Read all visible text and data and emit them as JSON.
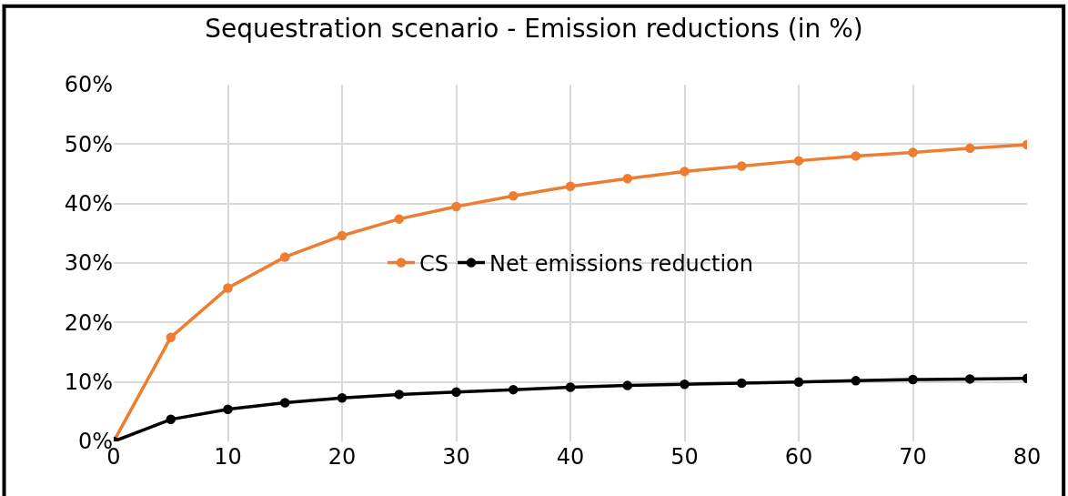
{
  "chart_data": {
    "type": "line",
    "title": "Sequestration scenario - Emission reductions (in %)",
    "x": [
      0,
      5,
      10,
      15,
      20,
      25,
      30,
      35,
      40,
      45,
      50,
      55,
      60,
      65,
      70,
      75,
      80
    ],
    "series": [
      {
        "name": "CS",
        "color": "#ed7d31",
        "values": [
          0,
          17.5,
          25.8,
          31.0,
          34.6,
          37.4,
          39.5,
          41.3,
          42.9,
          44.2,
          45.4,
          46.3,
          47.2,
          48.0,
          48.6,
          49.3,
          49.9
        ]
      },
      {
        "name": "Net emissions reduction",
        "color": "#000000",
        "values": [
          0,
          3.7,
          5.4,
          6.5,
          7.3,
          7.9,
          8.3,
          8.7,
          9.1,
          9.4,
          9.6,
          9.8,
          10.0,
          10.2,
          10.4,
          10.5,
          10.6
        ]
      }
    ],
    "xlim": [
      0,
      80
    ],
    "xticks": [
      0,
      10,
      20,
      30,
      40,
      50,
      60,
      70,
      80
    ],
    "ylim": [
      0,
      60
    ],
    "yticks": [
      {
        "value": 0,
        "label": "0%"
      },
      {
        "value": 10,
        "label": "10%"
      },
      {
        "value": 20,
        "label": "20%"
      },
      {
        "value": 30,
        "label": "30%"
      },
      {
        "value": 40,
        "label": "40%"
      },
      {
        "value": 50,
        "label": "50%"
      },
      {
        "value": 60,
        "label": "60%"
      }
    ],
    "grid": true,
    "legend": "center",
    "marker": "circle",
    "line_style": "solid"
  }
}
